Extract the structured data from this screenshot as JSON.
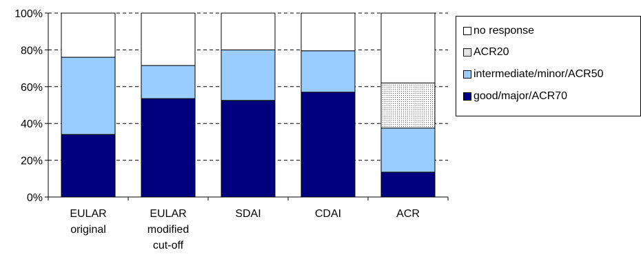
{
  "chart_data": {
    "type": "bar",
    "stacked": true,
    "categories": [
      [
        "EULAR",
        "original"
      ],
      [
        "EULAR",
        "modified",
        "cut-off"
      ],
      [
        "SDAI"
      ],
      [
        "CDAI"
      ],
      [
        "ACR"
      ]
    ],
    "series": [
      {
        "name": "good/major/ACR70",
        "color": "#00007f",
        "pattern": "solid",
        "values": [
          34,
          53.5,
          52.5,
          57,
          13.5
        ]
      },
      {
        "name": "intermediate/minor/ACR50",
        "color": "#99ccff",
        "pattern": "solid",
        "values": [
          42,
          18,
          27.5,
          22.5,
          24
        ]
      },
      {
        "name": "ACR20",
        "color": "#ffffff",
        "pattern": "dotted",
        "values": [
          0,
          0,
          0,
          0,
          24.5
        ]
      },
      {
        "name": "no response",
        "color": "#ffffff",
        "pattern": "solid",
        "values": [
          24,
          28.5,
          20,
          20.5,
          38
        ]
      }
    ],
    "legend_order": [
      "no response",
      "ACR20",
      "intermediate/minor/ACR50",
      "good/major/ACR70"
    ],
    "yticks": [
      "0%",
      "20%",
      "40%",
      "60%",
      "80%",
      "100%"
    ],
    "ylim": [
      0,
      100
    ],
    "grid": "horizontal dashed",
    "legend_position": "right",
    "title": "",
    "xlabel": "",
    "ylabel": ""
  }
}
